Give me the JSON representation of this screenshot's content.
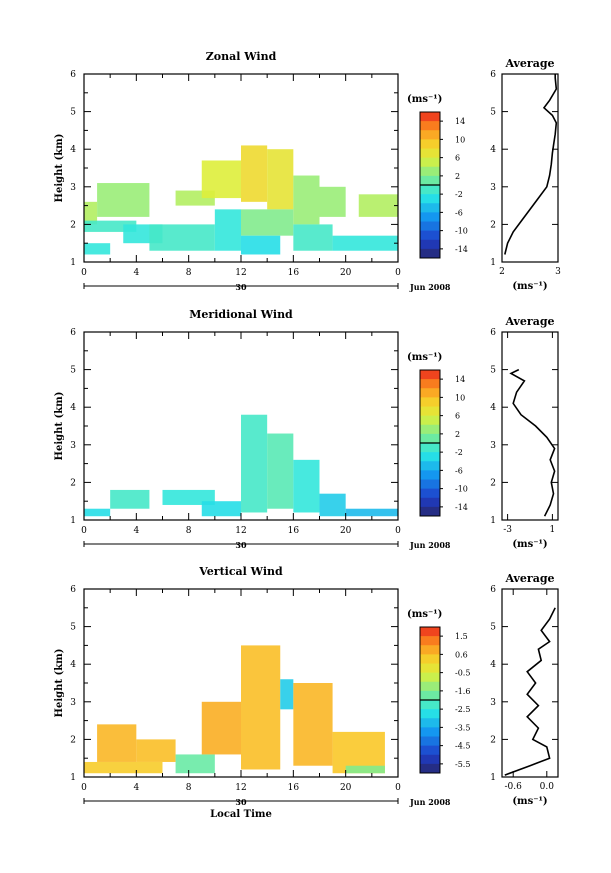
{
  "chart_data": [
    {
      "type": "heatmap",
      "title": "Zonal Wind",
      "ylabel": "Height (km)",
      "xlabel": "",
      "x_ticks": [
        "0",
        "4",
        "8",
        "12",
        "16",
        "20",
        "0"
      ],
      "y_ticks": [
        "1",
        "2",
        "3",
        "4",
        "5",
        "6"
      ],
      "ylim": [
        1,
        6
      ],
      "xlim": [
        0,
        24
      ],
      "day_label": "30",
      "month_label": "Jun 2008",
      "colorbar": {
        "unit": "(ms⁻¹)",
        "tick_labels": [
          "14",
          "10",
          "6",
          "2",
          "-2",
          "-6",
          "-10",
          "-14"
        ],
        "range": [
          -16,
          16
        ]
      },
      "cells": [
        {
          "x0": 0,
          "x1": 1,
          "y0": 2.0,
          "y1": 2.6,
          "v": 4
        },
        {
          "x0": 0,
          "x1": 4,
          "y0": 1.8,
          "y1": 2.1,
          "v": -1
        },
        {
          "x0": 0,
          "x1": 2,
          "y0": 1.2,
          "y1": 1.5,
          "v": -2
        },
        {
          "x0": 1,
          "x1": 5,
          "y0": 2.2,
          "y1": 3.1,
          "v": 3
        },
        {
          "x0": 3,
          "x1": 6,
          "y0": 1.5,
          "y1": 2.0,
          "v": -2
        },
        {
          "x0": 5,
          "x1": 10,
          "y0": 1.3,
          "y1": 2.0,
          "v": -1
        },
        {
          "x0": 7,
          "x1": 10,
          "y0": 2.5,
          "y1": 2.9,
          "v": 4
        },
        {
          "x0": 9,
          "x1": 12,
          "y0": 2.7,
          "y1": 3.7,
          "v": 6
        },
        {
          "x0": 10,
          "x1": 12,
          "y0": 1.3,
          "y1": 2.4,
          "v": -2
        },
        {
          "x0": 12,
          "x1": 14,
          "y0": 2.6,
          "y1": 4.1,
          "v": 8
        },
        {
          "x0": 14,
          "x1": 16,
          "y0": 2.4,
          "y1": 4.0,
          "v": 7
        },
        {
          "x0": 12,
          "x1": 16,
          "y0": 1.7,
          "y1": 2.4,
          "v": 2
        },
        {
          "x0": 12,
          "x1": 15,
          "y0": 1.2,
          "y1": 1.7,
          "v": -3
        },
        {
          "x0": 16,
          "x1": 18,
          "y0": 2.0,
          "y1": 3.3,
          "v": 3
        },
        {
          "x0": 16,
          "x1": 19,
          "y0": 1.3,
          "y1": 2.0,
          "v": -1
        },
        {
          "x0": 18,
          "x1": 20,
          "y0": 2.2,
          "y1": 3.0,
          "v": 3
        },
        {
          "x0": 19,
          "x1": 24,
          "y0": 1.3,
          "y1": 1.7,
          "v": -2
        },
        {
          "x0": 21,
          "x1": 24,
          "y0": 2.2,
          "y1": 2.8,
          "v": 4
        }
      ],
      "average_profile": {
        "title": "Average",
        "xlabel": "(ms⁻¹)",
        "x_ticks": [
          "2",
          "3"
        ],
        "xlim": [
          2,
          3
        ],
        "ylim": [
          1,
          6
        ],
        "y_ticks": [
          "1",
          "2",
          "3",
          "4",
          "5",
          "6"
        ],
        "points": [
          [
            2.05,
            1.2
          ],
          [
            2.1,
            1.5
          ],
          [
            2.2,
            1.8
          ],
          [
            2.35,
            2.1
          ],
          [
            2.5,
            2.4
          ],
          [
            2.65,
            2.7
          ],
          [
            2.8,
            3.0
          ],
          [
            2.85,
            3.3
          ],
          [
            2.88,
            3.6
          ],
          [
            2.9,
            3.9
          ],
          [
            2.92,
            4.1
          ],
          [
            2.95,
            4.4
          ],
          [
            2.97,
            4.7
          ],
          [
            2.9,
            4.9
          ],
          [
            2.75,
            5.1
          ],
          [
            2.85,
            5.3
          ],
          [
            2.97,
            5.6
          ],
          [
            2.95,
            5.9
          ],
          [
            2.95,
            6.0
          ]
        ]
      }
    },
    {
      "type": "heatmap",
      "title": "Meridional Wind",
      "ylabel": "Height (km)",
      "xlabel": "",
      "x_ticks": [
        "0",
        "4",
        "8",
        "12",
        "16",
        "20",
        "0"
      ],
      "y_ticks": [
        "1",
        "2",
        "3",
        "4",
        "5",
        "6"
      ],
      "ylim": [
        1,
        6
      ],
      "xlim": [
        0,
        24
      ],
      "day_label": "30",
      "month_label": "Jun 2008",
      "colorbar": {
        "unit": "(ms⁻¹)",
        "tick_labels": [
          "14",
          "10",
          "6",
          "2",
          "-2",
          "-6",
          "-10",
          "-14"
        ],
        "range": [
          -16,
          16
        ]
      },
      "cells": [
        {
          "x0": 0,
          "x1": 2,
          "y0": 1.1,
          "y1": 1.3,
          "v": -3
        },
        {
          "x0": 2,
          "x1": 5,
          "y0": 1.3,
          "y1": 1.8,
          "v": -1
        },
        {
          "x0": 6,
          "x1": 10,
          "y0": 1.4,
          "y1": 1.8,
          "v": -2
        },
        {
          "x0": 9,
          "x1": 12,
          "y0": 1.1,
          "y1": 1.5,
          "v": -3
        },
        {
          "x0": 12,
          "x1": 14,
          "y0": 1.2,
          "y1": 3.8,
          "v": -1
        },
        {
          "x0": 14,
          "x1": 16,
          "y0": 1.3,
          "y1": 3.3,
          "v": 0
        },
        {
          "x0": 16,
          "x1": 18,
          "y0": 1.2,
          "y1": 2.6,
          "v": -2
        },
        {
          "x0": 18,
          "x1": 20,
          "y0": 1.1,
          "y1": 1.7,
          "v": -4
        },
        {
          "x0": 20,
          "x1": 24,
          "y0": 1.1,
          "y1": 1.3,
          "v": -5
        }
      ],
      "average_profile": {
        "title": "Average",
        "xlabel": "(ms⁻¹)",
        "x_ticks": [
          "-3",
          "1"
        ],
        "xlim": [
          -3.5,
          1.5
        ],
        "ylim": [
          1,
          6
        ],
        "y_ticks": [
          "1",
          "2",
          "3",
          "4",
          "5",
          "6"
        ],
        "points": [
          [
            0.3,
            1.1
          ],
          [
            0.8,
            1.4
          ],
          [
            1.1,
            1.7
          ],
          [
            0.9,
            2.0
          ],
          [
            1.2,
            2.3
          ],
          [
            0.8,
            2.6
          ],
          [
            1.2,
            2.9
          ],
          [
            0.5,
            3.2
          ],
          [
            -0.5,
            3.5
          ],
          [
            -1.8,
            3.8
          ],
          [
            -2.5,
            4.1
          ],
          [
            -2.2,
            4.4
          ],
          [
            -1.5,
            4.7
          ],
          [
            -2.7,
            4.9
          ],
          [
            -2.0,
            5.0
          ]
        ]
      }
    },
    {
      "type": "heatmap",
      "title": "Vertical Wind",
      "ylabel": "Height (km)",
      "xlabel": "Local Time",
      "x_ticks": [
        "0",
        "4",
        "8",
        "12",
        "16",
        "20",
        "0"
      ],
      "y_ticks": [
        "1",
        "2",
        "3",
        "4",
        "5",
        "6"
      ],
      "ylim": [
        1,
        6
      ],
      "xlim": [
        0,
        24
      ],
      "day_label": "30",
      "month_label": "Jun 2008",
      "colorbar": {
        "unit": "(ms⁻¹)",
        "tick_labels": [
          "1.5",
          "0.6",
          "-0.5",
          "-1.6",
          "-2.5",
          "-3.5",
          "-4.5",
          "-5.5"
        ],
        "range": [
          -6,
          2
        ]
      },
      "cells": [
        {
          "x0": 0,
          "x1": 6,
          "y0": 1.1,
          "y1": 1.4,
          "v": 0.3
        },
        {
          "x0": 1,
          "x1": 4,
          "y0": 1.4,
          "y1": 2.4,
          "v": 0.6
        },
        {
          "x0": 4,
          "x1": 7,
          "y0": 1.4,
          "y1": 2.0,
          "v": 0.5
        },
        {
          "x0": 7,
          "x1": 10,
          "y0": 1.1,
          "y1": 1.6,
          "v": -1.8
        },
        {
          "x0": 9,
          "x1": 12,
          "y0": 1.6,
          "y1": 3.0,
          "v": 0.7
        },
        {
          "x0": 12,
          "x1": 15,
          "y0": 1.2,
          "y1": 4.5,
          "v": 0.5
        },
        {
          "x0": 15,
          "x1": 16,
          "y0": 2.8,
          "y1": 3.6,
          "v": -3.0
        },
        {
          "x0": 16,
          "x1": 19,
          "y0": 1.3,
          "y1": 3.5,
          "v": 0.6
        },
        {
          "x0": 19,
          "x1": 23,
          "y0": 1.1,
          "y1": 2.2,
          "v": 0.4
        },
        {
          "x0": 20,
          "x1": 23,
          "y0": 1.1,
          "y1": 1.3,
          "v": -1.5
        }
      ],
      "average_profile": {
        "title": "Average",
        "xlabel": "(ms⁻¹)",
        "x_ticks": [
          "-0.6",
          "0.0"
        ],
        "xlim": [
          -0.8,
          0.2
        ],
        "ylim": [
          1,
          6
        ],
        "y_ticks": [
          "1",
          "2",
          "3",
          "4",
          "5",
          "6"
        ],
        "points": [
          [
            -0.75,
            1.05
          ],
          [
            -0.3,
            1.3
          ],
          [
            0.05,
            1.5
          ],
          [
            0.0,
            1.8
          ],
          [
            -0.25,
            2.0
          ],
          [
            -0.15,
            2.3
          ],
          [
            -0.35,
            2.6
          ],
          [
            -0.15,
            2.9
          ],
          [
            -0.35,
            3.2
          ],
          [
            -0.2,
            3.5
          ],
          [
            -0.35,
            3.8
          ],
          [
            -0.1,
            4.1
          ],
          [
            -0.15,
            4.4
          ],
          [
            0.05,
            4.6
          ],
          [
            -0.1,
            4.9
          ],
          [
            0.05,
            5.2
          ],
          [
            0.15,
            5.5
          ]
        ]
      }
    }
  ]
}
